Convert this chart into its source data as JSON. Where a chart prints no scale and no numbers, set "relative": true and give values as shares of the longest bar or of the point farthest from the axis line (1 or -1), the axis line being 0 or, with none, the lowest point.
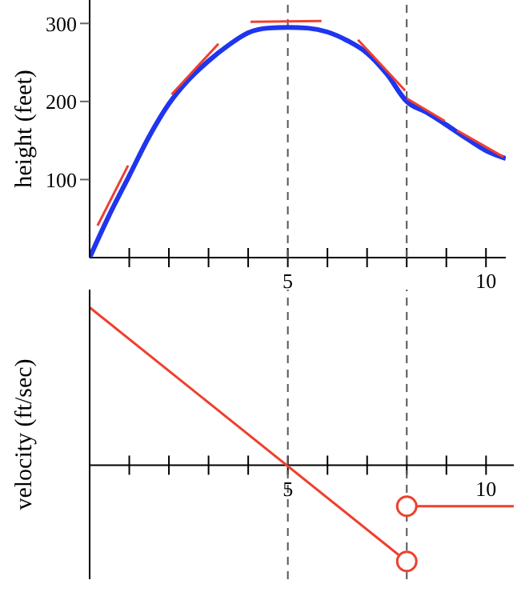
{
  "chart_data": [
    {
      "type": "line",
      "ylabel": "height (feet)",
      "xlim": [
        0,
        10.5
      ],
      "xticks": [
        {
          "value": 1,
          "label": null
        },
        {
          "value": 2,
          "label": null
        },
        {
          "value": 3,
          "label": null
        },
        {
          "value": 4,
          "label": null
        },
        {
          "value": 5,
          "label": "5"
        },
        {
          "value": 6,
          "label": null
        },
        {
          "value": 7,
          "label": null
        },
        {
          "value": 8,
          "label": null
        },
        {
          "value": 9,
          "label": null
        },
        {
          "value": 10,
          "label": "10"
        }
      ],
      "ylim": [
        0,
        330
      ],
      "yticks": [
        100,
        200,
        300
      ],
      "marker": "none",
      "ref_lines": [
        {
          "axis": "x",
          "value": 5,
          "color": "#555555",
          "line_style": "dashed"
        },
        {
          "axis": "x",
          "value": 8,
          "color": "#555555",
          "line_style": "dashed"
        }
      ],
      "series": [
        {
          "color": "#1f35ee",
          "x": [
            0,
            0.5,
            1,
            1.5,
            2,
            2.5,
            3,
            3.5,
            4,
            4.5,
            5,
            5.5,
            6,
            6.5,
            7,
            7.5,
            8,
            8.5,
            9,
            9.5,
            10,
            10.5
          ],
          "values": [
            0,
            55,
            105,
            155,
            197,
            228,
            252,
            272,
            288,
            294,
            295,
            294,
            289,
            278,
            262,
            235,
            200,
            186,
            170,
            153,
            137,
            127
          ]
        },
        {
          "color": "#ee4030",
          "x": [
            0.2,
            0.97
          ],
          "values": [
            41,
            118
          ]
        },
        {
          "color": "#ee4030",
          "x": [
            2.07,
            3.25
          ],
          "values": [
            209,
            274
          ]
        },
        {
          "color": "#ee4030",
          "x": [
            4.06,
            5.85
          ],
          "values": [
            302,
            303
          ]
        },
        {
          "color": "#ee4030",
          "x": [
            6.77,
            7.96
          ],
          "values": [
            279,
            214
          ]
        },
        {
          "color": "#ee4030",
          "x": [
            8,
            8.96
          ],
          "values": [
            204,
            175
          ]
        },
        {
          "color": "#ee4030",
          "x": [
            9.27,
            10.44
          ],
          "values": [
            163,
            129
          ]
        }
      ]
    },
    {
      "type": "line",
      "relative": true,
      "ylabel": "velocity (ft/sec)",
      "xlim": [
        0,
        10.7
      ],
      "xticks": [
        {
          "value": 1,
          "label": null
        },
        {
          "value": 2,
          "label": null
        },
        {
          "value": 3,
          "label": null
        },
        {
          "value": 4,
          "label": null
        },
        {
          "value": 5,
          "label": "5"
        },
        {
          "value": 6,
          "label": null
        },
        {
          "value": 7,
          "label": null
        },
        {
          "value": 8,
          "label": null
        },
        {
          "value": 9,
          "label": null
        },
        {
          "value": 10,
          "label": "10"
        }
      ],
      "marker": "none",
      "ref_lines": [
        {
          "axis": "x",
          "value": 5,
          "color": "#555555",
          "line_style": "dashed"
        },
        {
          "axis": "x",
          "value": 8,
          "color": "#555555",
          "line_style": "dashed"
        }
      ],
      "series": [
        {
          "color": "#ee4030",
          "x": [
            0,
            8
          ],
          "values": [
            1,
            -0.61
          ]
        },
        {
          "color": "#ee4030",
          "x": [
            8,
            10.7
          ],
          "values": [
            -0.26,
            -0.26
          ]
        },
        {
          "type": "scatter",
          "marker": "circle",
          "color": "#ee4030",
          "x": [
            8,
            8
          ],
          "values": [
            -0.61,
            -0.26
          ]
        }
      ]
    }
  ]
}
